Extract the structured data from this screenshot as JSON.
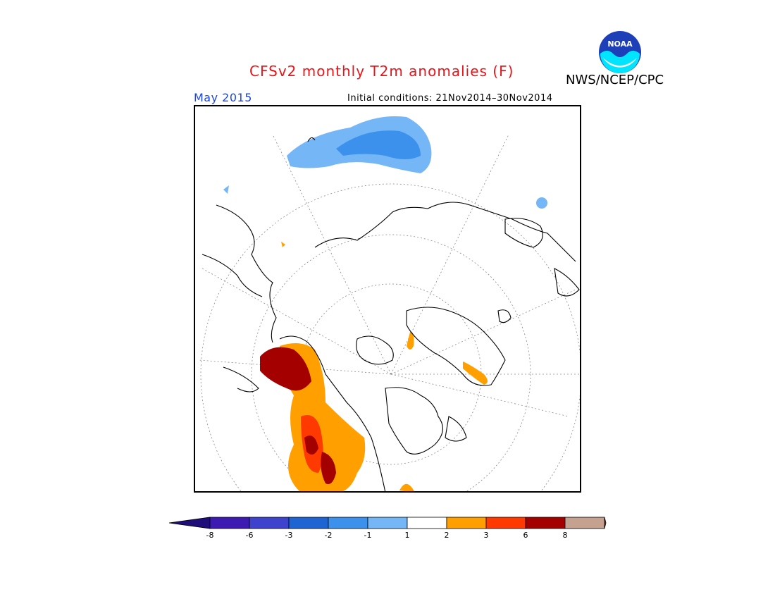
{
  "header": {
    "title": "CFSv2 monthly T2m anomalies (F)",
    "agency": "NWS/NCEP/CPC",
    "month": "May 2015",
    "initial_conditions": "Initial conditions: 21Nov2014–30Nov2014",
    "logo_text": "NOAA"
  },
  "legend": {
    "bins": [
      {
        "color": "#3d1bb3"
      },
      {
        "color": "#3d43cd"
      },
      {
        "color": "#1e64d2"
      },
      {
        "color": "#3c91ed"
      },
      {
        "color": "#74b6f6"
      },
      {
        "color": "#ffffff"
      },
      {
        "color": "#ffa000"
      },
      {
        "color": "#ff3a00"
      },
      {
        "color": "#a50000"
      },
      {
        "color": "#c5a18f"
      }
    ],
    "low_extend_color": "#1f0d7a",
    "high_extend_color": "#7a5140",
    "tick_labels": [
      "-8",
      "-6",
      "-3",
      "-2",
      "-1",
      "1",
      "2",
      "3",
      "6",
      "8"
    ]
  }
}
